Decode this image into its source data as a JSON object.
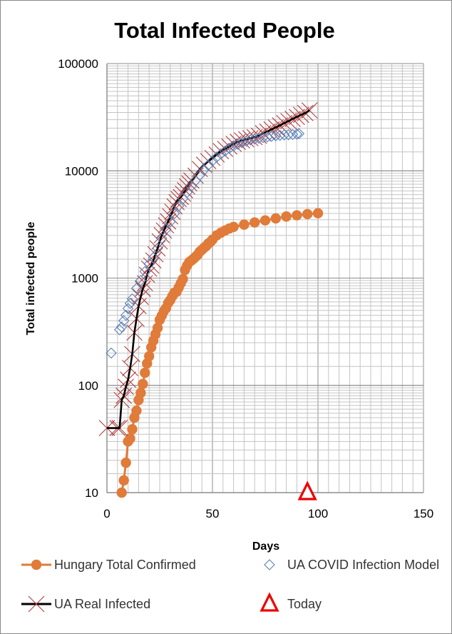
{
  "chart_data": {
    "type": "scatter",
    "title": "Total Infected People",
    "xlabel": "Days",
    "ylabel": "Total infected people",
    "xlim": [
      0,
      150
    ],
    "ylim": [
      10,
      100000
    ],
    "yscale": "log",
    "x_ticks": [
      "0",
      "50",
      "100",
      "150"
    ],
    "y_ticks": [
      "10",
      "100",
      "1000",
      "10000",
      "100000"
    ],
    "grid": true,
    "legend_position": "bottom",
    "series": [
      {
        "name": "Hungary Total Confirmed",
        "color": "#e07b39",
        "marker": "circle",
        "line": true,
        "points": [
          [
            7,
            10
          ],
          [
            8,
            13
          ],
          [
            9,
            19
          ],
          [
            10,
            30
          ],
          [
            11,
            32
          ],
          [
            12,
            39
          ],
          [
            13,
            50
          ],
          [
            14,
            58
          ],
          [
            15,
            73
          ],
          [
            16,
            85
          ],
          [
            17,
            103
          ],
          [
            18,
            131
          ],
          [
            19,
            160
          ],
          [
            20,
            187
          ],
          [
            21,
            226
          ],
          [
            22,
            261
          ],
          [
            23,
            300
          ],
          [
            24,
            343
          ],
          [
            25,
            408
          ],
          [
            26,
            447
          ],
          [
            27,
            492
          ],
          [
            28,
            525
          ],
          [
            29,
            585
          ],
          [
            30,
            623
          ],
          [
            31,
            678
          ],
          [
            32,
            733
          ],
          [
            33,
            744
          ],
          [
            34,
            817
          ],
          [
            35,
            895
          ],
          [
            36,
            980
          ],
          [
            37,
            1190
          ],
          [
            38,
            1310
          ],
          [
            39,
            1410
          ],
          [
            40,
            1458
          ],
          [
            41,
            1512
          ],
          [
            42,
            1579
          ],
          [
            43,
            1652
          ],
          [
            44,
            1763
          ],
          [
            45,
            1834
          ],
          [
            46,
            1916
          ],
          [
            47,
            1984
          ],
          [
            48,
            2098
          ],
          [
            49,
            2168
          ],
          [
            50,
            2284
          ],
          [
            52,
            2500
          ],
          [
            54,
            2650
          ],
          [
            56,
            2780
          ],
          [
            58,
            2900
          ],
          [
            60,
            3000
          ],
          [
            65,
            3150
          ],
          [
            70,
            3300
          ],
          [
            75,
            3450
          ],
          [
            80,
            3600
          ],
          [
            85,
            3750
          ],
          [
            90,
            3850
          ],
          [
            95,
            3950
          ],
          [
            100,
            4020
          ]
        ]
      },
      {
        "name": "UA COVID Infection Model",
        "color": "#5a7fb5",
        "marker": "diamond",
        "line": false,
        "points": [
          [
            2,
            200
          ],
          [
            6,
            330
          ],
          [
            7,
            350
          ],
          [
            8,
            400
          ],
          [
            9,
            450
          ],
          [
            10,
            520
          ],
          [
            11,
            580
          ],
          [
            12,
            640
          ],
          [
            14,
            800
          ],
          [
            16,
            950
          ],
          [
            18,
            1150
          ],
          [
            20,
            1350
          ],
          [
            22,
            1550
          ],
          [
            24,
            1900
          ],
          [
            26,
            2350
          ],
          [
            28,
            2850
          ],
          [
            30,
            3350
          ],
          [
            32,
            4000
          ],
          [
            34,
            4700
          ],
          [
            36,
            5500
          ],
          [
            38,
            6300
          ],
          [
            40,
            7200
          ],
          [
            42,
            8100
          ],
          [
            44,
            9100
          ],
          [
            46,
            10200
          ],
          [
            48,
            11300
          ],
          [
            50,
            12400
          ],
          [
            52,
            13400
          ],
          [
            54,
            14400
          ],
          [
            56,
            15300
          ],
          [
            58,
            16200
          ],
          [
            60,
            17000
          ],
          [
            62,
            17700
          ],
          [
            64,
            18300
          ],
          [
            66,
            18900
          ],
          [
            68,
            19400
          ],
          [
            70,
            19800
          ],
          [
            72,
            20100
          ],
          [
            74,
            20400
          ],
          [
            76,
            20700
          ],
          [
            78,
            21000
          ],
          [
            80,
            21200
          ],
          [
            82,
            21400
          ],
          [
            84,
            21600
          ],
          [
            86,
            21700
          ],
          [
            88,
            21800
          ],
          [
            90,
            22000
          ],
          [
            91,
            22200
          ]
        ]
      },
      {
        "name": "UA Real Infected",
        "color": "#000000",
        "marker_color": "#b03a3a",
        "marker": "x",
        "line": true,
        "points": [
          [
            0,
            40
          ],
          [
            5,
            40
          ],
          [
            6,
            40
          ],
          [
            7,
            73
          ],
          [
            8,
            80
          ],
          [
            9,
            97
          ],
          [
            10,
            113
          ],
          [
            11,
            145
          ],
          [
            12,
            196
          ],
          [
            13,
            310
          ],
          [
            14,
            418
          ],
          [
            15,
            548
          ],
          [
            16,
            669
          ],
          [
            17,
            794
          ],
          [
            18,
            897
          ],
          [
            19,
            1072
          ],
          [
            20,
            1225
          ],
          [
            21,
            1308
          ],
          [
            22,
            1462
          ],
          [
            23,
            1668
          ],
          [
            24,
            1892
          ],
          [
            25,
            2203
          ],
          [
            26,
            2511
          ],
          [
            27,
            2777
          ],
          [
            28,
            3102
          ],
          [
            29,
            3372
          ],
          [
            30,
            3764
          ],
          [
            31,
            4161
          ],
          [
            32,
            4662
          ],
          [
            33,
            5106
          ],
          [
            34,
            5449
          ],
          [
            35,
            5710
          ],
          [
            36,
            6125
          ],
          [
            37,
            6592
          ],
          [
            38,
            7170
          ],
          [
            39,
            7647
          ],
          [
            40,
            8125
          ],
          [
            42,
            9009
          ],
          [
            44,
            10406
          ],
          [
            46,
            11411
          ],
          [
            48,
            12331
          ],
          [
            50,
            13184
          ],
          [
            52,
            14195
          ],
          [
            54,
            15232
          ],
          [
            56,
            16023
          ],
          [
            58,
            16847
          ],
          [
            60,
            17858
          ],
          [
            62,
            18616
          ],
          [
            64,
            19230
          ],
          [
            66,
            19706
          ],
          [
            68,
            20148
          ],
          [
            70,
            20580
          ],
          [
            72,
            21245
          ],
          [
            74,
            22382
          ],
          [
            76,
            23204
          ],
          [
            78,
            24340
          ],
          [
            80,
            25411
          ],
          [
            82,
            26542
          ],
          [
            84,
            27856
          ],
          [
            86,
            29070
          ],
          [
            88,
            30506
          ],
          [
            90,
            31810
          ],
          [
            92,
            33234
          ],
          [
            94,
            34616
          ],
          [
            96,
            36560
          ]
        ]
      },
      {
        "name": "Today",
        "color": "#ee0000",
        "marker": "triangle",
        "line": false,
        "points": [
          [
            95,
            10
          ]
        ]
      }
    ]
  }
}
